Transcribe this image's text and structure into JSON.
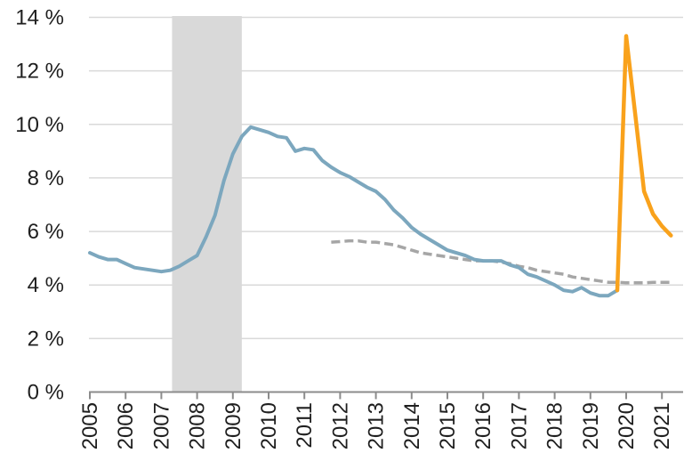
{
  "chart_data": {
    "type": "line",
    "title": "",
    "xlabel": "",
    "ylabel": "",
    "grid": true,
    "legend": "none",
    "y_axis": {
      "min": 0,
      "max": 14,
      "step": 2,
      "tick_labels": [
        "0 %",
        "2 %",
        "4 %",
        "6 %",
        "8 %",
        "10 %",
        "12 %",
        "14 %"
      ]
    },
    "x_axis": {
      "tick_labels": [
        "2005",
        "2006",
        "2007",
        "2008",
        "2009",
        "2010",
        "2011",
        "2012",
        "2013",
        "2014",
        "2015",
        "2016",
        "2017",
        "2018",
        "2019",
        "2020",
        "2021"
      ],
      "unit": "year, quarterly data points"
    },
    "recession_band": {
      "from": 2007.3,
      "to": 2009.25,
      "color": "#D9D9D9"
    },
    "series": [
      {
        "name": "main-line-blue",
        "style": "solid",
        "color": "#7CA7BE",
        "width": 4,
        "x_start": 2005.0,
        "x_step": 0.25,
        "values": [
          5.2,
          5.05,
          4.95,
          4.95,
          4.8,
          4.65,
          4.6,
          4.55,
          4.5,
          4.55,
          4.7,
          4.9,
          5.1,
          5.8,
          6.6,
          7.9,
          8.9,
          9.55,
          9.9,
          9.8,
          9.7,
          9.55,
          9.5,
          9.0,
          9.1,
          9.05,
          8.65,
          8.4,
          8.2,
          8.05,
          7.85,
          7.65,
          7.5,
          7.2,
          6.8,
          6.5,
          6.15,
          5.9,
          5.7,
          5.5,
          5.3,
          5.2,
          5.1,
          4.95,
          4.9,
          4.9,
          4.9,
          4.75,
          4.65,
          4.4,
          4.3,
          4.15,
          4.0,
          3.8,
          3.75,
          3.9,
          3.7,
          3.6,
          3.6,
          3.8
        ]
      },
      {
        "name": "dashed-line-gray",
        "style": "dashed",
        "color": "#A6A6A6",
        "width": 3.5,
        "x_start": 2011.75,
        "x_step": 0.25,
        "values": [
          5.6,
          5.62,
          5.65,
          5.65,
          5.6,
          5.6,
          5.55,
          5.5,
          5.4,
          5.3,
          5.2,
          5.15,
          5.1,
          5.05,
          5.0,
          4.95,
          4.9,
          4.9,
          4.9,
          4.85,
          4.8,
          4.7,
          4.65,
          4.55,
          4.5,
          4.45,
          4.4,
          4.3,
          4.25,
          4.2,
          4.15,
          4.1,
          4.1,
          4.08,
          4.08,
          4.08,
          4.1,
          4.1,
          4.1
        ]
      },
      {
        "name": "spike-line-orange",
        "style": "solid",
        "color": "#F9A21C",
        "width": 4.5,
        "x_start": 2019.75,
        "x_step": 0.25,
        "values": [
          3.8,
          13.3,
          10.4,
          7.5,
          6.65,
          6.2,
          5.85
        ]
      }
    ],
    "colors": {
      "gridline": "#D9D9D9",
      "axis": "#8C8C8C",
      "tick_text": "#1F1F1F",
      "background": "#FFFFFF"
    }
  }
}
